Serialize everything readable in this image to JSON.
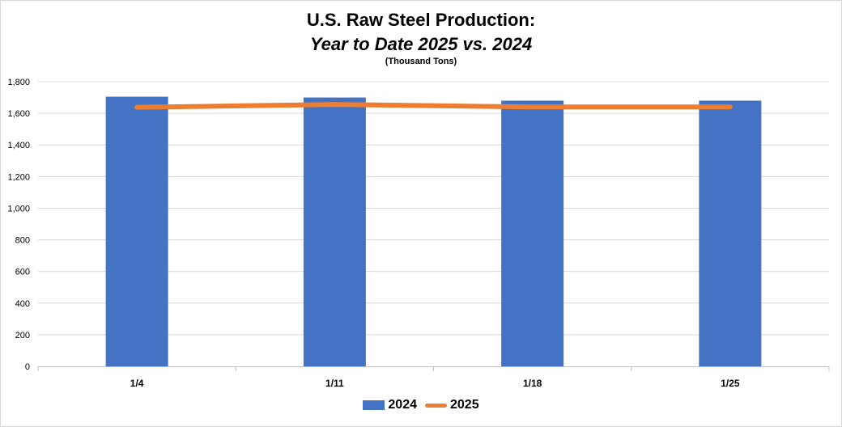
{
  "chart_data": {
    "type": "bar",
    "title": "U.S. Raw Steel Production:",
    "subtitle": "Year to Date 2025 vs. 2024",
    "unit_note": "(Thousand Tons)",
    "categories": [
      "1/4",
      "1/11",
      "1/18",
      "1/25"
    ],
    "series": [
      {
        "name": "2024",
        "type": "bar",
        "color": "#4472c4",
        "values": [
          1705,
          1700,
          1680,
          1680
        ]
      },
      {
        "name": "2025",
        "type": "line",
        "color": "#ed7d31",
        "values": [
          1638,
          1656,
          1640,
          1640
        ]
      }
    ],
    "ylim": [
      0,
      1800
    ],
    "yticks": [
      0,
      200,
      400,
      600,
      800,
      1000,
      1200,
      1400,
      1600,
      1800
    ],
    "ytick_labels": [
      "0",
      "200",
      "400",
      "600",
      "800",
      "1,000",
      "1,200",
      "1,400",
      "1,600",
      "1,800"
    ],
    "grid": true,
    "legend_position": "bottom"
  }
}
